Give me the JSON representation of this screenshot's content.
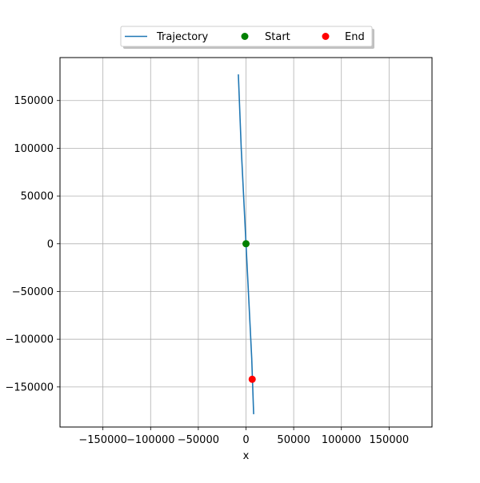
{
  "chart_data": {
    "type": "line",
    "title": "",
    "xlabel": "x",
    "ylabel": "",
    "xlim": [
      -195000,
      195000
    ],
    "ylim": [
      -192000,
      195000
    ],
    "x_ticks": [
      -150000,
      -100000,
      -50000,
      0,
      50000,
      100000,
      150000
    ],
    "y_ticks": [
      -150000,
      -100000,
      -50000,
      0,
      50000,
      100000,
      150000
    ],
    "grid": true,
    "legend": {
      "placement": "top-center",
      "entries": [
        {
          "label": "Trajectory",
          "kind": "line",
          "color": "#1f77b4"
        },
        {
          "label": "Start",
          "kind": "marker",
          "color": "#008000"
        },
        {
          "label": "End",
          "kind": "marker",
          "color": "#ff0000"
        }
      ]
    },
    "series": [
      {
        "name": "Trajectory",
        "color": "#1f77b4",
        "points": [
          {
            "x": -8000,
            "y": 177000
          },
          {
            "x": -5000,
            "y": 100000
          },
          {
            "x": -2000,
            "y": 40000
          },
          {
            "x": 0,
            "y": 0
          },
          {
            "x": 3000,
            "y": -60000
          },
          {
            "x": 6000,
            "y": -120000
          },
          {
            "x": 8000,
            "y": -178000
          }
        ]
      }
    ],
    "markers": [
      {
        "name": "Start",
        "x": 0,
        "y": 0,
        "color": "#008000"
      },
      {
        "name": "End",
        "x": 6500,
        "y": -142000,
        "color": "#ff0000"
      }
    ]
  }
}
